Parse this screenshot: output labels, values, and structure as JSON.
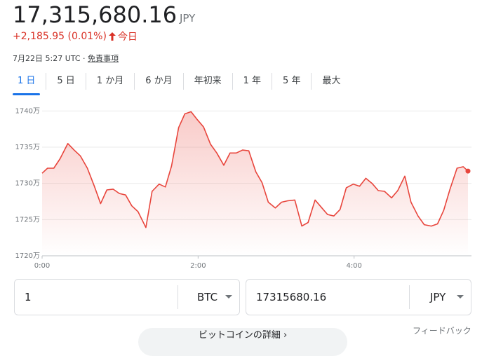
{
  "header": {
    "price": "17,315,680.16",
    "currency": "JPY",
    "change": "+2,185.95 (0.01%)",
    "period": "今日",
    "timestamp": "7月22日 5:27 UTC ·",
    "disclaimer": "免責事項"
  },
  "tabs": [
    "1 日",
    "5 日",
    "1 か月",
    "6 か月",
    "年初来",
    "1 年",
    "5 年",
    "最大"
  ],
  "chart_data": {
    "type": "line",
    "x": [
      0,
      0.07,
      0.15,
      0.23,
      0.33,
      0.41,
      0.49,
      0.58,
      0.67,
      0.75,
      0.83,
      0.91,
      0.99,
      1.07,
      1.15,
      1.23,
      1.33,
      1.41,
      1.5,
      1.58,
      1.66,
      1.75,
      1.83,
      1.91,
      1.99,
      2.07,
      2.16,
      2.24,
      2.33,
      2.41,
      2.49,
      2.57,
      2.65,
      2.74,
      2.82,
      2.9,
      2.99,
      3.07,
      3.15,
      3.24,
      3.33,
      3.41,
      3.5,
      3.58,
      3.66,
      3.74,
      3.82,
      3.9,
      3.99,
      4.07,
      4.15,
      4.23,
      4.31,
      4.39,
      4.48,
      4.56,
      4.65,
      4.73,
      4.82,
      4.9,
      4.99,
      5.07,
      5.15,
      5.23,
      5.32,
      5.4,
      5.46
    ],
    "values": [
      17314000,
      17321000,
      17321000,
      17334000,
      17355000,
      17346000,
      17338000,
      17321000,
      17296000,
      17272000,
      17291000,
      17292000,
      17286000,
      17284000,
      17269000,
      17261000,
      17239000,
      17289000,
      17299000,
      17295000,
      17324000,
      17377000,
      17396000,
      17399000,
      17388000,
      17378000,
      17354000,
      17342000,
      17325000,
      17342000,
      17342000,
      17346000,
      17345000,
      17316000,
      17301000,
      17274000,
      17266000,
      17274000,
      17276000,
      17277000,
      17241000,
      17246000,
      17277000,
      17267000,
      17257000,
      17255000,
      17264000,
      17294000,
      17299000,
      17296000,
      17307000,
      17300000,
      17290000,
      17289000,
      17280000,
      17290000,
      17310000,
      17274000,
      17255000,
      17243000,
      17241000,
      17244000,
      17263000,
      17292000,
      17321000,
      17323000,
      17317000
    ],
    "color": "#e8453c",
    "xlim": [
      0,
      5.46
    ],
    "xticks": [
      {
        "value": 0,
        "label": "0:00"
      },
      {
        "value": 2,
        "label": "2:00"
      },
      {
        "value": 4,
        "label": "4:00"
      }
    ],
    "ylim": [
      17200000,
      17410000
    ],
    "yticks": [
      {
        "value": 17200000,
        "label": "1720万"
      },
      {
        "value": 17250000,
        "label": "1725万"
      },
      {
        "value": 17300000,
        "label": "1730万"
      },
      {
        "value": 17350000,
        "label": "1735万"
      },
      {
        "value": 17400000,
        "label": "1740万"
      }
    ],
    "grid": true
  },
  "converter": {
    "from_amount": "1",
    "from_unit": "BTC",
    "to_amount": "17315680.16",
    "to_unit": "JPY"
  },
  "feedback": "フィードバック",
  "more_button": "ビットコインの詳細"
}
